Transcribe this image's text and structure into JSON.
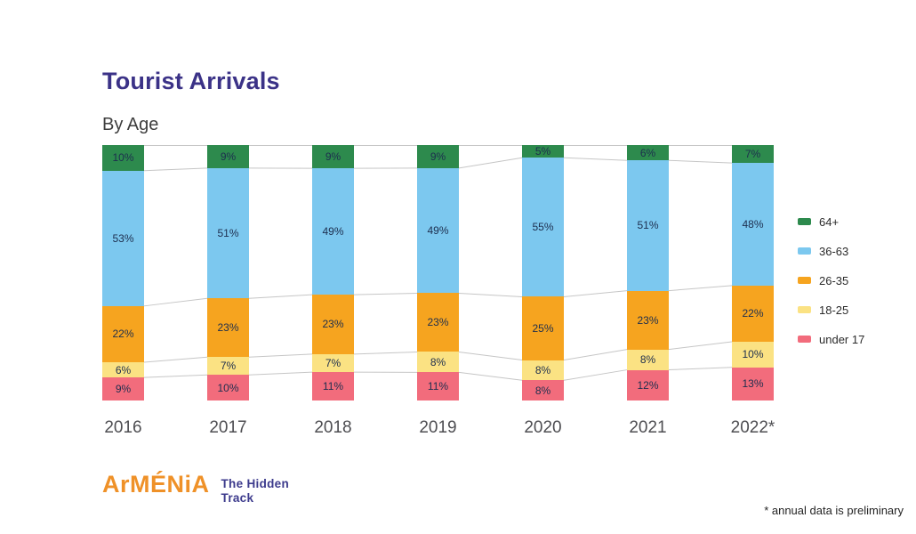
{
  "header": {
    "title": "Tourist Arrivals",
    "subtitle": "By Age"
  },
  "chart_data": {
    "type": "bar",
    "stacked": true,
    "percent_stacked": true,
    "unit": "%",
    "title": "Tourist Arrivals",
    "subtitle": "By Age",
    "categories": [
      "2016",
      "2017",
      "2018",
      "2019",
      "2020",
      "2021",
      "2022*"
    ],
    "series": [
      {
        "name": "64+",
        "color": "#2d8a4d",
        "values": [
          10,
          9,
          9,
          9,
          5,
          6,
          7
        ]
      },
      {
        "name": "36-63",
        "color": "#7cc8ef",
        "values": [
          53,
          51,
          49,
          49,
          55,
          51,
          48
        ]
      },
      {
        "name": "26-35",
        "color": "#f6a41f",
        "values": [
          22,
          23,
          23,
          23,
          25,
          23,
          22
        ]
      },
      {
        "name": "18-25",
        "color": "#fbe283",
        "values": [
          6,
          7,
          7,
          8,
          8,
          8,
          10
        ]
      },
      {
        "name": "under 17",
        "color": "#f26c7c",
        "values": [
          9,
          10,
          11,
          11,
          8,
          12,
          13
        ]
      }
    ],
    "value_labels": "inside",
    "legend_position": "right",
    "grid": false,
    "connector_lines": true,
    "connector_color": "#c6c6c6",
    "ylim": [
      0,
      100
    ]
  },
  "footer": {
    "logo_main": "ArMÉNiA",
    "logo_tagline_line1": "The Hidden",
    "logo_tagline_line2": "Track",
    "note": "* annual data is preliminary"
  },
  "colors": {
    "title": "#3b3287",
    "subtitle": "#3e3e3e",
    "value_label": "#1d2e4e",
    "axis_label": "#4e4e52",
    "logo_orange": "#ef9128",
    "logo_purple": "#3c3a8c"
  }
}
